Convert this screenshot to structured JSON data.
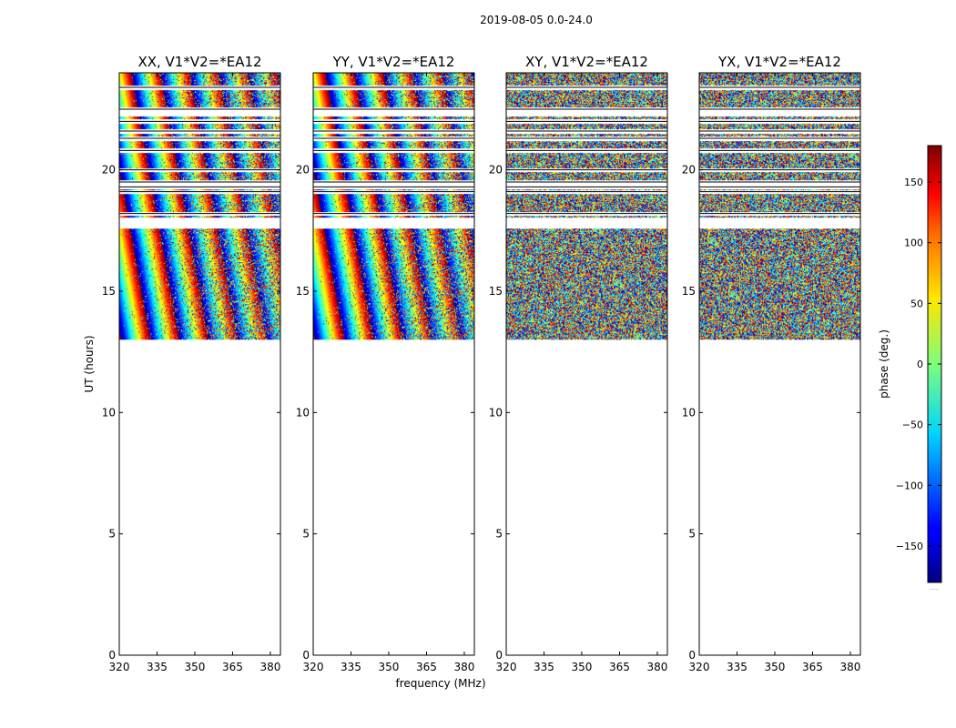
{
  "suptitle": "2019-08-05 0.0-24.0",
  "chart_data": {
    "type": "heatmap",
    "xlabel": "frequency (MHz)",
    "ylabel": "UT (hours)",
    "xlim": [
      320,
      384
    ],
    "ylim": [
      0,
      24
    ],
    "x_ticks": [
      320,
      335,
      350,
      365,
      380
    ],
    "y_ticks": [
      0,
      5,
      10,
      15,
      20
    ],
    "data_time_range_hours": [
      13.0,
      24.0
    ],
    "flagged_rows_hours": [
      18.2,
      19.1,
      19.3,
      19.5,
      20.0,
      20.8,
      21.3,
      21.6,
      22.0,
      22.5,
      23.4
    ],
    "panels": [
      {
        "title": "XX, V1*V2=*EA12",
        "pattern": "fringes"
      },
      {
        "title": "YY, V1*V2=*EA12",
        "pattern": "fringes"
      },
      {
        "title": "XY, V1*V2=*EA12",
        "pattern": "noise"
      },
      {
        "title": "YX, V1*V2=*EA12",
        "pattern": "noise"
      }
    ],
    "colorbar": {
      "label": "phase (deg.)",
      "range": [
        -180,
        180
      ],
      "ticks": [
        -150,
        -100,
        -50,
        0,
        50,
        100,
        150
      ],
      "colormap": "jet",
      "footer": "......"
    }
  }
}
